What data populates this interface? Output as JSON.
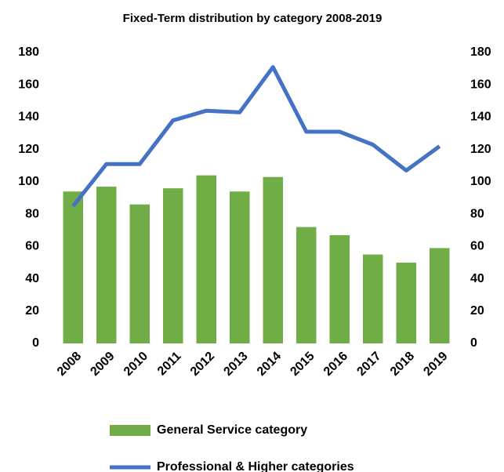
{
  "chart_data": {
    "type": "combo",
    "title": "Fixed-Term distribution by category 2008-2019",
    "categories": [
      "2008",
      "2009",
      "2010",
      "2011",
      "2012",
      "2013",
      "2014",
      "2015",
      "2016",
      "2017",
      "2018",
      "2019"
    ],
    "series": [
      {
        "name": "General Service category",
        "type": "bar",
        "color": "#70ad47",
        "values": [
          94,
          97,
          86,
          96,
          104,
          94,
          103,
          72,
          67,
          55,
          50,
          59
        ]
      },
      {
        "name": "Professional & Higher categories",
        "type": "line",
        "axis": "y2",
        "color": "#4472c4",
        "values": [
          85,
          111,
          111,
          138,
          144,
          143,
          171,
          131,
          131,
          123,
          107,
          122
        ]
      }
    ],
    "ylim": [
      0,
      180
    ],
    "yticks": [
      0,
      20,
      40,
      60,
      80,
      100,
      120,
      140,
      160,
      180
    ],
    "y2lim": [
      0,
      180
    ],
    "y2ticks": [
      0,
      20,
      40,
      60,
      80,
      100,
      120,
      140,
      160,
      180
    ],
    "grid": false,
    "legend": "bottom"
  }
}
